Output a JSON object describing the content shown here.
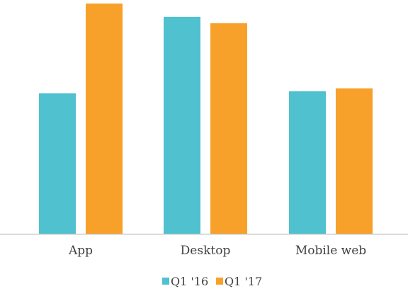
{
  "chart_data": {
    "type": "bar",
    "categories": [
      "App",
      "Desktop",
      "Mobile web"
    ],
    "series": [
      {
        "name": "Q1 '16",
        "color": "#4FC1CF",
        "values": [
          200,
          309,
          203
        ]
      },
      {
        "name": "Q1 '17",
        "color": "#F7A12A",
        "values": [
          328,
          300,
          207
        ]
      }
    ],
    "ylim": [
      0,
      330
    ],
    "grid": false,
    "legend_position": "bottom",
    "axis_color": "#BFBFBF"
  }
}
